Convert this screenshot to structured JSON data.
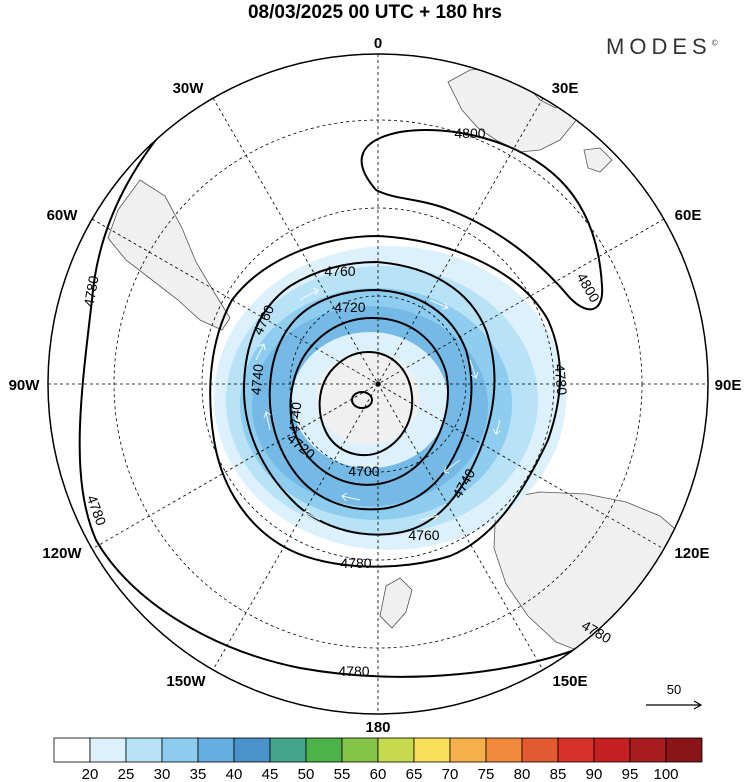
{
  "title": "08/03/2025  00 UTC  + 180 hrs",
  "brand": "MODES",
  "brand_mark": "©",
  "longitude_labels": {
    "n": "0",
    "ne30": "30E",
    "ne60": "60E",
    "e": "90E",
    "se120": "120E",
    "se150": "150E",
    "s": "180",
    "sw150": "150W",
    "sw120": "120W",
    "w": "90W",
    "nw60": "60W",
    "nw30": "30W"
  },
  "contour_labels": [
    "4800",
    "4800",
    "4780",
    "4780",
    "4780",
    "4780",
    "4780",
    "4780",
    "4760",
    "4760",
    "4760",
    "4740",
    "4740",
    "4740",
    "4720",
    "4720",
    "4700"
  ],
  "vector_reference": "50",
  "colorbar": {
    "labels": [
      "20",
      "25",
      "30",
      "35",
      "40",
      "45",
      "50",
      "55",
      "60",
      "65",
      "70",
      "75",
      "80",
      "85",
      "90",
      "95",
      "100"
    ],
    "colors": [
      "#ffffff",
      "#dcf1fb",
      "#b8e3f7",
      "#8ecdf0",
      "#64aee0",
      "#4a92cc",
      "#44a58c",
      "#4cb34a",
      "#84c446",
      "#c6dc4e",
      "#f8e05a",
      "#f8b04c",
      "#f08a3a",
      "#e45a30",
      "#d8302a",
      "#c42024",
      "#a81c20",
      "#8a1418"
    ]
  }
}
